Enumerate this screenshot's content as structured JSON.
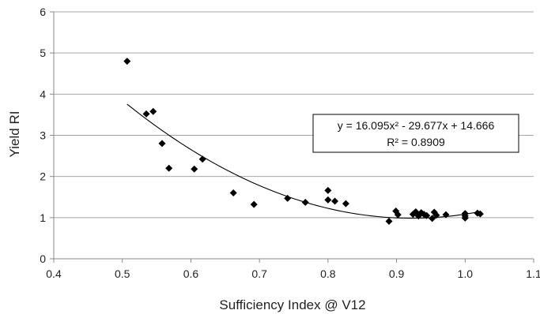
{
  "chart_data": {
    "type": "scatter",
    "title": "",
    "xlabel": "Sufficiency Index @ V12",
    "ylabel": "Yield RI",
    "xlim": [
      0.4,
      1.1
    ],
    "ylim": [
      0,
      6
    ],
    "xticks": [
      "0.4",
      "0.5",
      "0.6",
      "0.7",
      "0.8",
      "0.9",
      "1.0",
      "1.1"
    ],
    "yticks": [
      "0",
      "1",
      "2",
      "3",
      "4",
      "5",
      "6"
    ],
    "grid": "horizontal",
    "legend": "none",
    "marker_color": "#000000",
    "points": [
      {
        "x": 0.507,
        "y": 4.8
      },
      {
        "x": 0.535,
        "y": 3.52
      },
      {
        "x": 0.545,
        "y": 3.58
      },
      {
        "x": 0.558,
        "y": 2.8
      },
      {
        "x": 0.568,
        "y": 2.2
      },
      {
        "x": 0.605,
        "y": 2.18
      },
      {
        "x": 0.617,
        "y": 2.42
      },
      {
        "x": 0.662,
        "y": 1.6
      },
      {
        "x": 0.692,
        "y": 1.32
      },
      {
        "x": 0.741,
        "y": 1.47
      },
      {
        "x": 0.767,
        "y": 1.37
      },
      {
        "x": 0.8,
        "y": 1.66
      },
      {
        "x": 0.8,
        "y": 1.43
      },
      {
        "x": 0.81,
        "y": 1.4
      },
      {
        "x": 0.826,
        "y": 1.34
      },
      {
        "x": 0.889,
        "y": 0.91
      },
      {
        "x": 0.899,
        "y": 1.16
      },
      {
        "x": 0.902,
        "y": 1.07
      },
      {
        "x": 0.924,
        "y": 1.08
      },
      {
        "x": 0.928,
        "y": 1.14
      },
      {
        "x": 0.932,
        "y": 1.04
      },
      {
        "x": 0.936,
        "y": 1.12
      },
      {
        "x": 0.94,
        "y": 1.08
      },
      {
        "x": 0.944,
        "y": 1.05
      },
      {
        "x": 0.952,
        "y": 0.98
      },
      {
        "x": 0.955,
        "y": 1.13
      },
      {
        "x": 0.958,
        "y": 1.06
      },
      {
        "x": 0.972,
        "y": 1.07
      },
      {
        "x": 1.0,
        "y": 0.99
      },
      {
        "x": 1.0,
        "y": 1.04
      },
      {
        "x": 1.0,
        "y": 1.1
      },
      {
        "x": 1.018,
        "y": 1.11
      },
      {
        "x": 1.022,
        "y": 1.09
      }
    ],
    "trendline": {
      "type": "polynomial",
      "coefficients": [
        16.095,
        -29.677,
        14.666
      ],
      "x_range": [
        0.507,
        1.022
      ],
      "equation": "y = 16.095x² - 29.677x + 14.666",
      "r_squared": "R² = 0.8909"
    }
  }
}
